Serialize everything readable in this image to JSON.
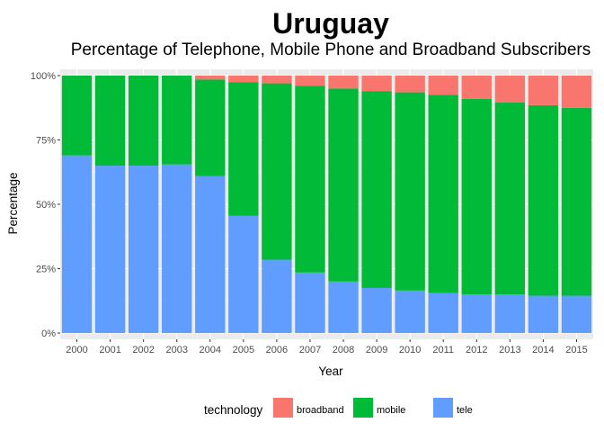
{
  "chart_data": {
    "type": "bar",
    "stacked": true,
    "title": "Uruguay",
    "subtitle": "Percentage of Telephone, Mobile Phone and Broadband Subscribers",
    "xlabel": "Year",
    "ylabel": "Percentage",
    "ylim": [
      0,
      1
    ],
    "yticks": [
      {
        "value": 0,
        "label": "0%"
      },
      {
        "value": 0.25,
        "label": "25%"
      },
      {
        "value": 0.5,
        "label": "50%"
      },
      {
        "value": 0.75,
        "label": "75%"
      },
      {
        "value": 1,
        "label": "100%"
      }
    ],
    "categories": [
      "2000",
      "2001",
      "2002",
      "2003",
      "2004",
      "2005",
      "2006",
      "2007",
      "2008",
      "2009",
      "2010",
      "2011",
      "2012",
      "2013",
      "2014",
      "2015"
    ],
    "series": [
      {
        "name": "tele",
        "color": "#619CFF",
        "values": [
          0.69,
          0.65,
          0.65,
          0.655,
          0.61,
          0.455,
          0.285,
          0.235,
          0.2,
          0.175,
          0.165,
          0.155,
          0.15,
          0.15,
          0.145,
          0.145
        ]
      },
      {
        "name": "mobile",
        "color": "#00BA38",
        "values": [
          0.31,
          0.35,
          0.35,
          0.345,
          0.375,
          0.52,
          0.685,
          0.725,
          0.75,
          0.765,
          0.77,
          0.77,
          0.76,
          0.745,
          0.74,
          0.73
        ]
      },
      {
        "name": "broadband",
        "color": "#F8766D",
        "values": [
          0.0,
          0.0,
          0.0,
          0.0,
          0.015,
          0.025,
          0.03,
          0.04,
          0.05,
          0.06,
          0.065,
          0.075,
          0.09,
          0.105,
          0.115,
          0.125
        ]
      }
    ],
    "grid": true,
    "panel_background": "#EBEBEB",
    "legend": {
      "title": "technology",
      "position": "bottom",
      "items": [
        {
          "label": "broadband",
          "color": "#F8766D"
        },
        {
          "label": "mobile",
          "color": "#00BA38"
        },
        {
          "label": "tele",
          "color": "#619CFF"
        }
      ]
    }
  }
}
